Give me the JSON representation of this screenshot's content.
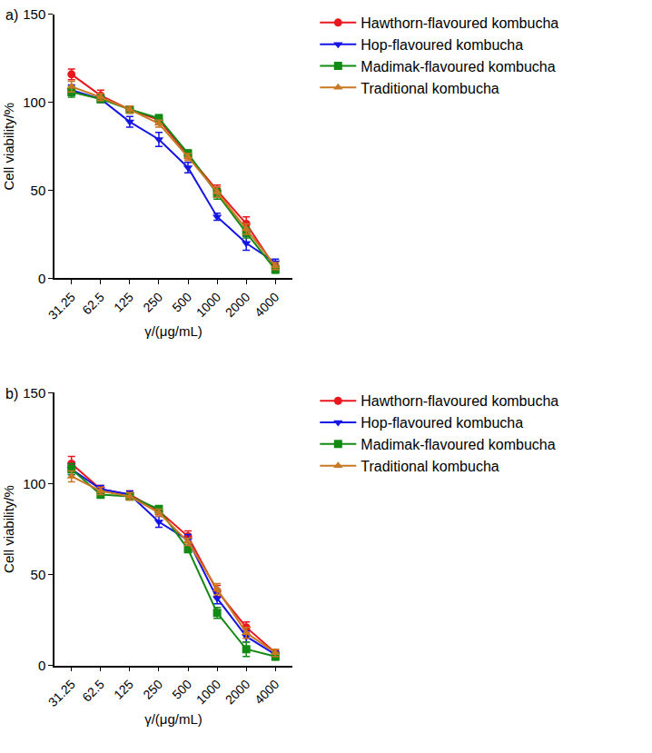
{
  "chart_data": [
    {
      "type": "line",
      "title": "a)",
      "x_label": "γ/(μg/mL)",
      "y_label": "Cell viability/%",
      "categories": [
        "31.25",
        "62.5",
        "125",
        "250",
        "500",
        "1000",
        "2000",
        "4000"
      ],
      "ylim": [
        0,
        150
      ],
      "yticks": [
        0,
        50,
        100,
        150
      ],
      "grid": false,
      "legend": "right",
      "series": [
        {
          "name": "Hawthorn-flavoured kombucha",
          "color": "#e8191e",
          "marker": "circle",
          "values": [
            116,
            104,
            96,
            90,
            70,
            50,
            31,
            6
          ],
          "errors": [
            3,
            3,
            2,
            2,
            2,
            3,
            4,
            2
          ]
        },
        {
          "name": "Hop-flavoured kombucha",
          "color": "#1515e6",
          "marker": "triangle-down",
          "values": [
            107,
            102,
            89,
            79,
            63,
            35,
            20,
            9
          ],
          "errors": [
            3,
            2,
            3,
            4,
            3,
            2,
            4,
            2
          ]
        },
        {
          "name": "Madimak-flavoured kombucha",
          "color": "#138a13",
          "marker": "square",
          "values": [
            106,
            102,
            96,
            91,
            71,
            48,
            26,
            5
          ],
          "errors": [
            3,
            2,
            2,
            2,
            2,
            3,
            3,
            2
          ]
        },
        {
          "name": "Traditional kombucha",
          "color": "#c87822",
          "marker": "triangle-up",
          "values": [
            109,
            103,
            96,
            88,
            69,
            49,
            28,
            7
          ],
          "errors": [
            3,
            2,
            2,
            2,
            2,
            3,
            3,
            2
          ]
        }
      ]
    },
    {
      "type": "line",
      "title": "b)",
      "x_label": "γ/(μg/mL)",
      "y_label": "Cell viability/%",
      "categories": [
        "31.25",
        "62.5",
        "125",
        "250",
        "500",
        "1000",
        "2000",
        "4000"
      ],
      "ylim": [
        0,
        150
      ],
      "yticks": [
        0,
        50,
        100,
        150
      ],
      "grid": false,
      "legend": "right",
      "series": [
        {
          "name": "Hawthorn-flavoured kombucha",
          "color": "#e8191e",
          "marker": "circle",
          "values": [
            111,
            97,
            94,
            85,
            71,
            41,
            21,
            7
          ],
          "errors": [
            4,
            2,
            2,
            2,
            3,
            3,
            3,
            2
          ]
        },
        {
          "name": "Hop-flavoured kombucha",
          "color": "#1515e6",
          "marker": "triangle-down",
          "values": [
            108,
            97,
            94,
            79,
            69,
            37,
            16,
            6
          ],
          "errors": [
            3,
            2,
            2,
            3,
            3,
            3,
            3,
            2
          ]
        },
        {
          "name": "Madimak-flavoured kombucha",
          "color": "#138a13",
          "marker": "square",
          "values": [
            108,
            94,
            93,
            86,
            64,
            29,
            9,
            5
          ],
          "errors": [
            3,
            2,
            2,
            2,
            2,
            3,
            4,
            2
          ]
        },
        {
          "name": "Traditional kombucha",
          "color": "#c87822",
          "marker": "triangle-up",
          "values": [
            104,
            96,
            93,
            84,
            68,
            42,
            18,
            7
          ],
          "errors": [
            3,
            2,
            2,
            2,
            2,
            3,
            3,
            2
          ]
        }
      ]
    }
  ]
}
